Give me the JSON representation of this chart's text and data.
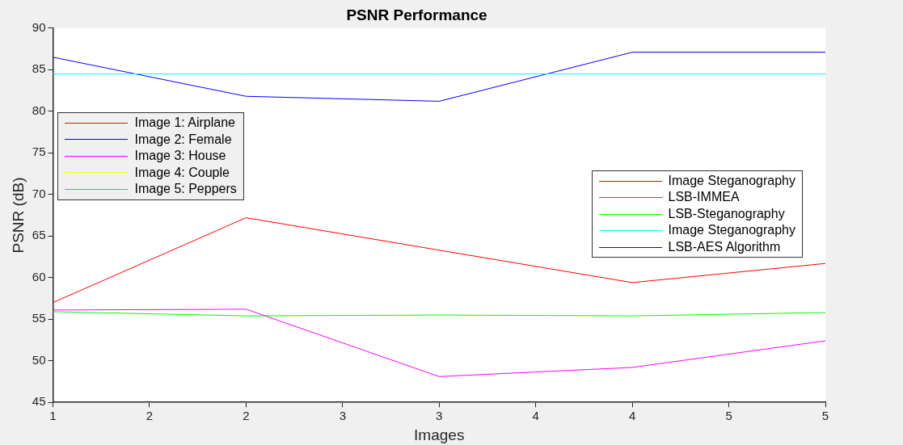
{
  "chart_data": {
    "type": "line",
    "title": "PSNR Performance",
    "xlabel": "Images",
    "ylabel": "PSNR (dB)",
    "x": [
      1,
      2,
      3,
      4,
      5
    ],
    "series": [
      {
        "name": "Image 1: Airplane",
        "color": "#ff0000",
        "values": [
          null,
          null,
          null,
          null,
          null
        ]
      },
      {
        "name": "Image 2: Female",
        "color": "#0000ff",
        "values": [
          null,
          null,
          null,
          null,
          null
        ]
      },
      {
        "name": "Image 3: House",
        "color": "#ff00ff",
        "values": [
          null,
          null,
          null,
          null,
          null
        ]
      },
      {
        "name": "Image 4: Couple",
        "color": "#ffff00",
        "values": [
          null,
          null,
          null,
          null,
          null
        ]
      },
      {
        "name": "Image 5: Peppers",
        "color": "#00ff00",
        "values": [
          null,
          null,
          null,
          null,
          null
        ]
      },
      {
        "name": "Image Steganography",
        "color": "#ff0000",
        "values": [
          57.0,
          67.2,
          63.3,
          59.4,
          61.7
        ]
      },
      {
        "name": "LSB-IMMEA",
        "color": "#ff00ff",
        "values": [
          56.1,
          56.2,
          48.1,
          49.2,
          52.4
        ]
      },
      {
        "name": "LSB-Steganography",
        "color": "#00ff00",
        "values": [
          55.9,
          55.4,
          55.5,
          55.4,
          55.8
        ]
      },
      {
        "name": "Image Steganography",
        "color": "#00ffff",
        "values": [
          84.5,
          84.5,
          84.5,
          84.5,
          84.5
        ]
      },
      {
        "name": "LSB-AES Algorithm",
        "color": "#0000ff",
        "values": [
          86.5,
          81.8,
          81.2,
          87.1,
          87.1
        ]
      }
    ],
    "xlim": [
      1,
      5
    ],
    "xticks": [
      1,
      {
        "value": 1.5,
        "label": "2"
      },
      2,
      {
        "value": 2.5,
        "label": "3"
      },
      3,
      {
        "value": 3.5,
        "label": "4"
      },
      4,
      {
        "value": 4.5,
        "label": "5"
      },
      5
    ],
    "ylim": [
      45,
      90
    ],
    "yticks": [
      45,
      50,
      55,
      60,
      65,
      70,
      75,
      80,
      85,
      90
    ],
    "grid": false,
    "legend": "right"
  }
}
